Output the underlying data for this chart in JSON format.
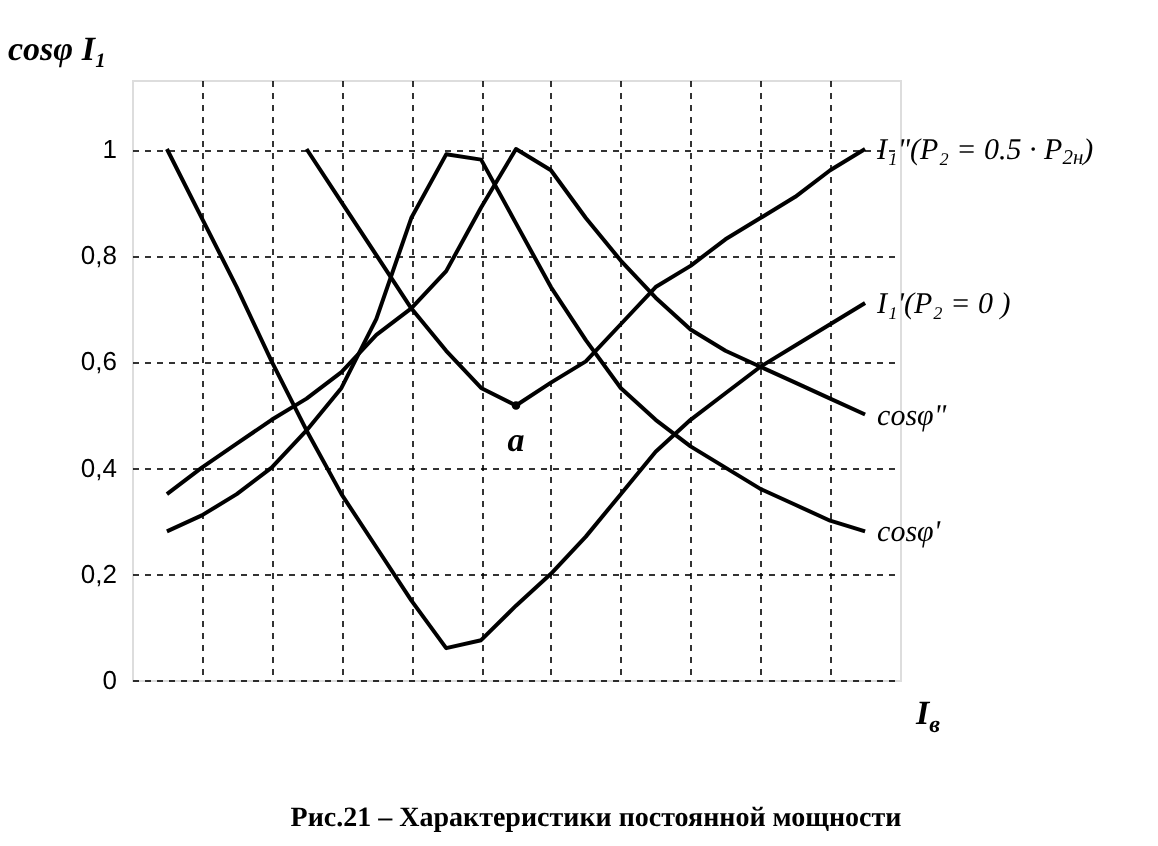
{
  "chart_data": {
    "type": "line",
    "title": "Рис.21 – Характеристики постоянной мощности",
    "xlabel": "I$_{в}$",
    "ylabel": "cosφ   I₁",
    "categories": [
      null,
      null,
      null,
      null,
      null,
      null,
      null,
      null,
      null,
      null,
      null,
      null,
      null,
      null,
      null,
      null,
      null,
      null,
      null,
      null,
      null
    ],
    "ylim": [
      0,
      1.13
    ],
    "yticks": [
      0,
      {
        "value": 0.2,
        "label": "0,2"
      },
      {
        "value": 0.4,
        "label": "0,4"
      },
      {
        "value": 0.6,
        "label": "0,6"
      },
      {
        "value": 0.8,
        "label": "0,8"
      },
      1
    ],
    "tick_labels": "y",
    "grid": true,
    "marker": "none",
    "line_style": "solid",
    "series": [
      {
        "name": "I₁\"(P₂ = 0.5 · P$_{2н}$)",
        "color": "#000000",
        "values": [
          null,
          null,
          null,
          null,
          1.0,
          0.9,
          0.8,
          0.7,
          0.62,
          0.55,
          0.517,
          0.56,
          0.6,
          0.67,
          0.74,
          0.78,
          0.83,
          0.87,
          0.91,
          0.96,
          1.0
        ]
      },
      {
        "name": "I₁'(P₂ = 0 )",
        "color": "#000000",
        "values": [
          1.0,
          0.87,
          0.74,
          0.6,
          0.47,
          0.35,
          0.25,
          0.15,
          0.06,
          0.075,
          0.14,
          0.2,
          0.27,
          0.35,
          0.43,
          0.49,
          0.54,
          0.59,
          0.63,
          0.67,
          0.71
        ]
      },
      {
        "name": "cosφ\"",
        "color": "#000000",
        "values": [
          0.35,
          0.4,
          0.445,
          0.49,
          0.53,
          0.58,
          0.65,
          0.7,
          0.77,
          0.89,
          1.0,
          0.96,
          0.87,
          0.79,
          0.72,
          0.66,
          0.62,
          0.59,
          0.56,
          0.53,
          0.5
        ]
      },
      {
        "name": "cosφ'",
        "color": "#000000",
        "values": [
          0.28,
          0.31,
          0.35,
          0.4,
          0.47,
          0.55,
          0.68,
          0.87,
          0.99,
          0.98,
          0.86,
          0.74,
          0.64,
          0.55,
          0.49,
          0.44,
          0.4,
          0.36,
          0.33,
          0.3,
          0.28
        ]
      }
    ],
    "annotations": [
      {
        "text": "a",
        "y": 0.517
      }
    ]
  }
}
